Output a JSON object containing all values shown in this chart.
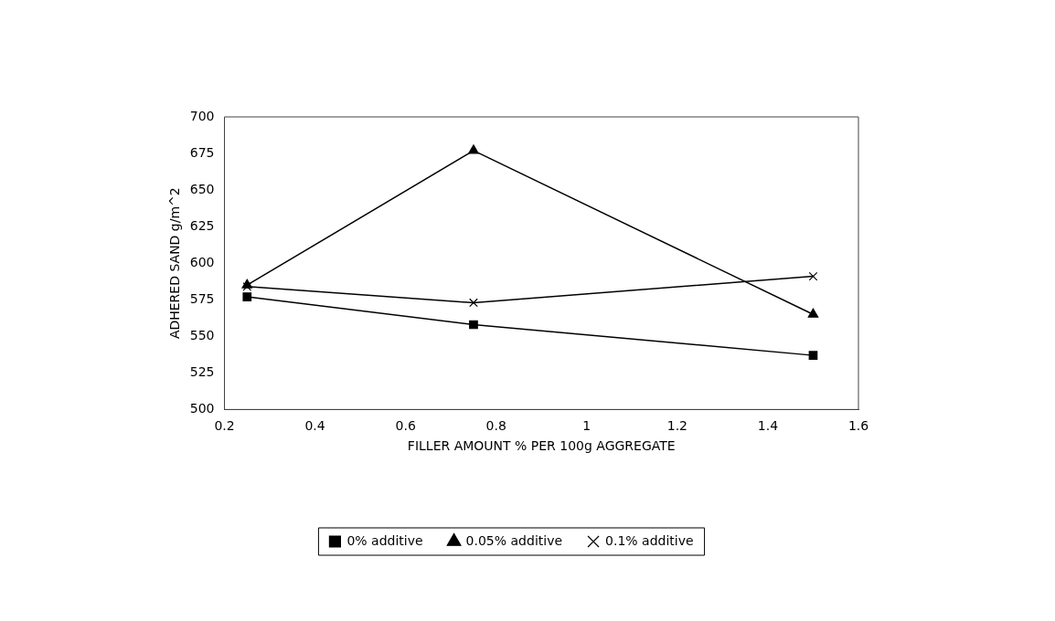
{
  "chart_data": {
    "type": "line",
    "xlabel": "FILLER AMOUNT % PER 100g AGGREGATE",
    "ylabel": "ADHERED SAND g/m^2",
    "x": [
      0.25,
      0.75,
      1.5
    ],
    "series": [
      {
        "name": "0% additive",
        "color": "#000000",
        "marker": "square",
        "values": [
          577,
          558,
          537
        ]
      },
      {
        "name": "0.05% additive",
        "color": "#000000",
        "marker": "triangle",
        "values": [
          585,
          677,
          565
        ]
      },
      {
        "name": "0.1% additive",
        "color": "#000000",
        "marker": "cross",
        "values": [
          584,
          573,
          591
        ]
      }
    ],
    "xlim": [
      0.2,
      1.6
    ],
    "xticks": [
      0.2,
      0.4,
      0.6,
      0.8,
      1,
      1.2,
      1.4,
      1.6
    ],
    "ylim": [
      500,
      700
    ],
    "yticks": [
      500,
      525,
      550,
      575,
      600,
      625,
      650,
      675,
      700
    ],
    "grid": false,
    "legend": "bottom",
    "line_style": "solid"
  }
}
